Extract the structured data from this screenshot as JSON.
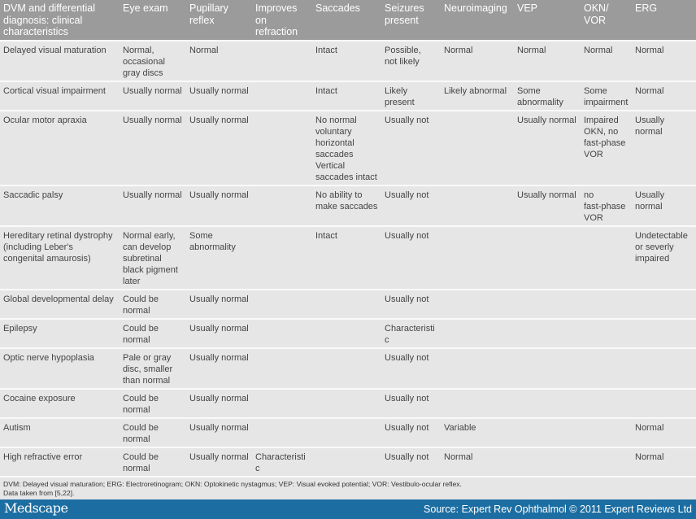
{
  "table": {
    "headers": [
      "DVM and differential\ndiagnosis: clinical\ncharacteristics",
      "Eye exam",
      "Pupillary\nreflex",
      "Improves\non\nrefraction",
      "Saccades",
      "Seizures\npresent",
      "Neuroimaging",
      "VEP",
      "OKN/\nVOR",
      "ERG"
    ],
    "rows": [
      [
        "Delayed visual maturation",
        "Normal,\noccasional\ngray discs",
        "Normal",
        "",
        "Intact",
        "Possible,\nnot likely",
        "Normal",
        "Normal",
        "Normal",
        "Normal"
      ],
      [
        "Cortical visual impairment",
        "Usually normal",
        "Usually normal",
        "",
        "Intact",
        "Likely\npresent",
        "Likely abnormal",
        "Some\nabnormality",
        "Some\nimpairment",
        "Normal"
      ],
      [
        "Ocular motor apraxia",
        "Usually normal",
        "Usually normal",
        "",
        "No normal\nvoluntary\nhorizontal\nsaccades\nVertical\nsaccades intact",
        "Usually not",
        "",
        "Usually normal",
        "Impaired\nOKN, no\nfast-phase\nVOR",
        "Usually normal"
      ],
      [
        "Saccadic palsy",
        "Usually normal",
        "Usually normal",
        "",
        "No ability to\nmake saccades",
        "Usually not",
        "",
        "Usually normal",
        "no\nfast-phase\nVOR",
        "Usually normal"
      ],
      [
        "Hereditary retinal dystrophy\n(including Leber's\ncongenital amaurosis)",
        "Normal early,\ncan develop\nsubretinal\nblack pigment\nlater",
        "Some\nabnormality",
        "",
        "Intact",
        "Usually not",
        "",
        "",
        "",
        "Undetectable\nor severly\nimpaired"
      ],
      [
        "Global developmental delay",
        "Could be\nnormal",
        "Usually normal",
        "",
        "",
        "Usually not",
        "",
        "",
        "",
        ""
      ],
      [
        "Epilepsy",
        "Could be\nnormal",
        "Usually normal",
        "",
        "",
        "Characteristic",
        "",
        "",
        "",
        ""
      ],
      [
        "Optic nerve hypoplasia",
        "Pale or gray\ndisc, smaller\nthan normal",
        "Usually normal",
        "",
        "",
        "Usually not",
        "",
        "",
        "",
        ""
      ],
      [
        "Cocaine exposure",
        "Could be\nnormal",
        "Usually normal",
        "",
        "",
        "Usually not",
        "",
        "",
        "",
        ""
      ],
      [
        "Autism",
        "Could be\nnormal",
        "Usually normal",
        "",
        "",
        "Usually not",
        "Variable",
        "",
        "",
        "Normal"
      ],
      [
        "High refractive error",
        "Could be\nnormal",
        "Usually normal",
        "Characteristic",
        "",
        "Usually not",
        "Normal",
        "",
        "",
        "Normal"
      ]
    ]
  },
  "footnote": "DVM: Delayed visual maturation; ERG: Electroretinogram; OKN: Optokinetic nystagmus; VEP: Visual evoked potential; VOR: Vestibulo-ocular reflex.\nData taken from [5,22].",
  "footer": {
    "logo": "Medscape",
    "source": "Source: Expert Rev Ophthalmol © 2011 Expert Reviews Ltd",
    "bar_color": "#1c6ea2"
  }
}
